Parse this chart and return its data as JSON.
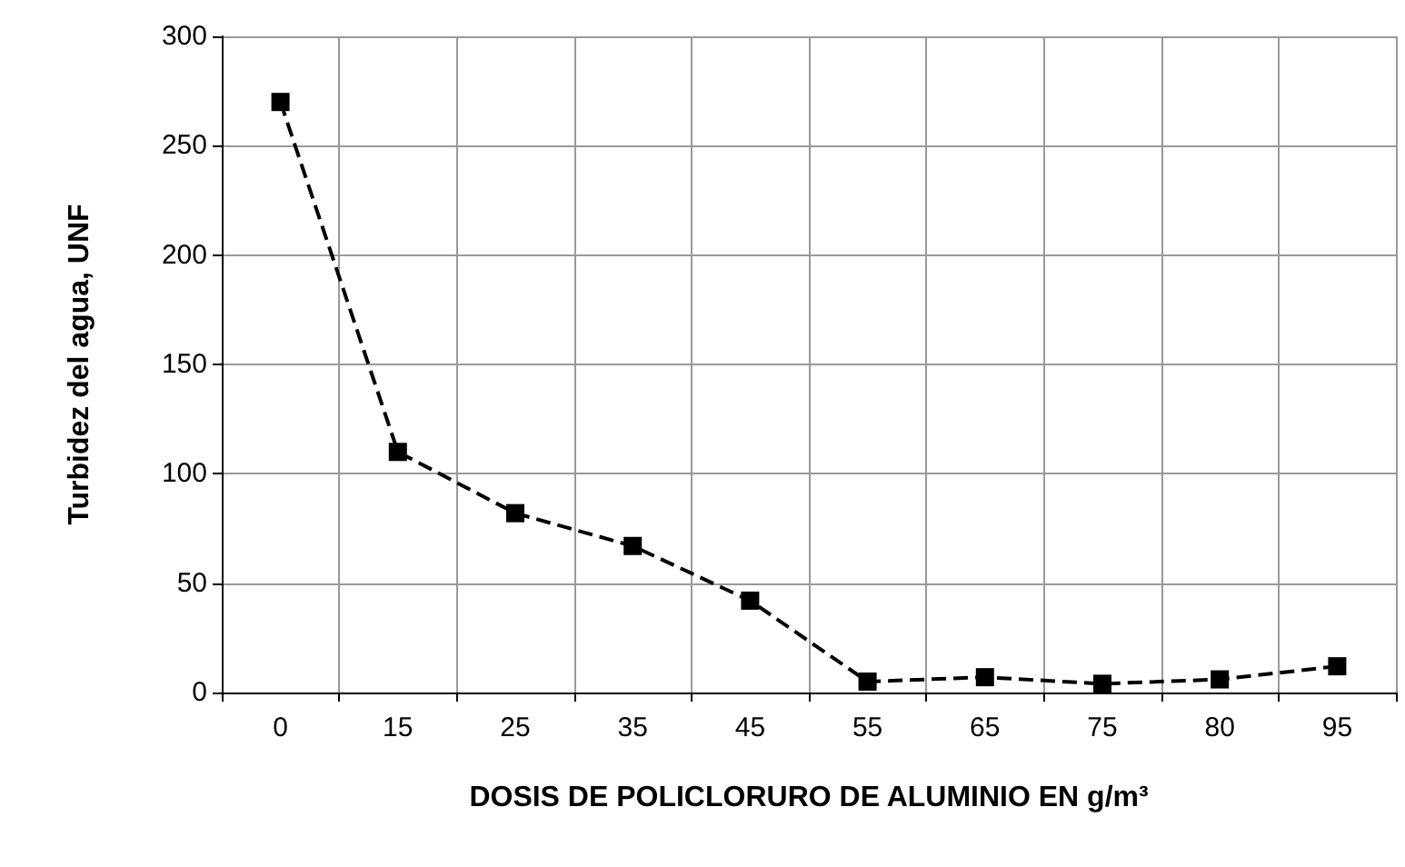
{
  "chart_data": {
    "type": "line",
    "xlabel": "DOSIS DE POLICLORURO DE ALUMINIO EN g/m³",
    "ylabel": "Turbidez del agua, UNF",
    "categories": [
      "0",
      "15",
      "25",
      "35",
      "45",
      "55",
      "65",
      "75",
      "80",
      "95"
    ],
    "series": [
      {
        "color": "#000000",
        "values": [
          270,
          110,
          82,
          67,
          42,
          5,
          7,
          4,
          6,
          12
        ]
      }
    ],
    "ylim": [
      0,
      300
    ],
    "yticks": [
      0,
      50,
      100,
      150,
      200,
      250,
      300
    ],
    "grid": true,
    "marker": "square",
    "line_style": "dashed"
  }
}
